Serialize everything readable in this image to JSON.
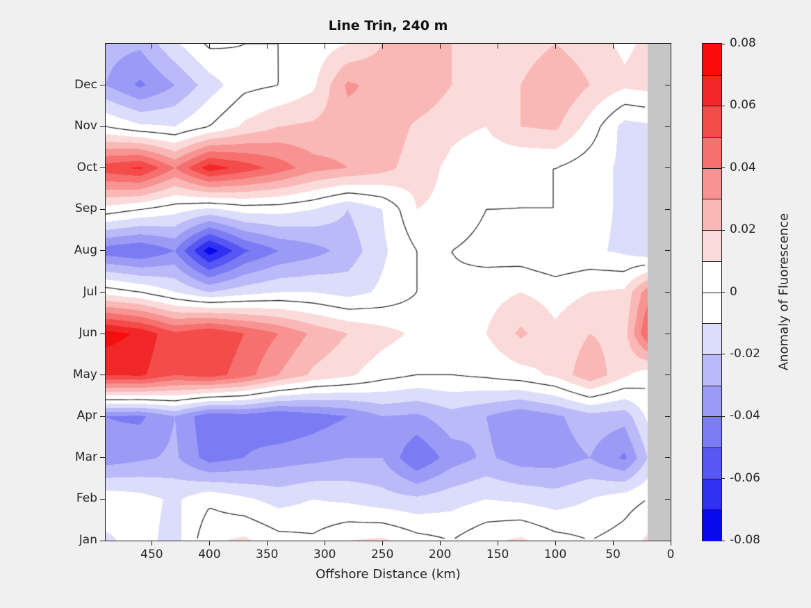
{
  "figure": {
    "title": "Line Trin, 240 m",
    "background_color": "#f0f0f0",
    "axis_color": "#1a1a1a",
    "text_color": "#262626"
  },
  "axes": {
    "xlabel": "Offshore Distance (km)",
    "x_ticks": [
      450,
      400,
      350,
      300,
      250,
      200,
      150,
      100,
      50,
      0
    ],
    "x_range": [
      490,
      0
    ],
    "months": [
      "Jan",
      "Feb",
      "Mar",
      "Apr",
      "May",
      "Jun",
      "Jul",
      "Aug",
      "Sep",
      "Oct",
      "Nov",
      "Dec"
    ]
  },
  "colorbar": {
    "label": "Anomaly of Fluorescence",
    "tick_labels": [
      "0.08",
      "0.06",
      "0.04",
      "0.02",
      "0",
      "-0.02",
      "-0.04",
      "-0.06",
      "-0.08"
    ],
    "tick_values": [
      0.08,
      0.06,
      0.04,
      0.02,
      0,
      -0.02,
      -0.04,
      -0.06,
      -0.08
    ],
    "range": [
      -0.08,
      0.08
    ],
    "colors_low_to_high": [
      "#0a0aef",
      "#3131f2",
      "#5757f3",
      "#7b7bf4",
      "#9b9bf6",
      "#babaf8",
      "#dcdcfb",
      "#ffffff",
      "#ffffff",
      "#fbdbda",
      "#f9b8b6",
      "#f79492",
      "#f5706e",
      "#f34c4a",
      "#f12827",
      "#f90c0c"
    ]
  },
  "chart_data": {
    "type": "heatmap",
    "subtype": "filled-contour",
    "title": "Line Trin, 240 m",
    "xlabel": "Offshore Distance (km)",
    "colorbar_label": "Anomaly of Fluorescence",
    "zlim": [
      -0.08,
      0.08
    ],
    "contour_interval": 0.01,
    "zero_contour_color": "#1a1a1a",
    "x_km": [
      490,
      460,
      430,
      400,
      370,
      340,
      310,
      280,
      250,
      220,
      190,
      160,
      130,
      100,
      70,
      40,
      20
    ],
    "row_labels": [
      "Jan",
      "Feb",
      "Mar",
      "Apr",
      "May",
      "Jun",
      "Jul",
      "Aug",
      "Sep",
      "Oct",
      "Nov",
      "Dec",
      "Jan-wrap-top-edge"
    ],
    "no_data_band_km": [
      20,
      0
    ],
    "no_data_color": "#c6c6c6",
    "grid": [
      [
        -0.012,
        -0.006,
        -0.014,
        0.008,
        0.012,
        0.004,
        0.002,
        0.01,
        0.012,
        0.004,
        0.0,
        0.008,
        0.012,
        0.004,
        0.0,
        0.004,
        0.012
      ],
      [
        -0.003,
        -0.006,
        -0.012,
        -0.002,
        -0.008,
        -0.014,
        -0.01,
        -0.012,
        -0.016,
        -0.018,
        -0.014,
        -0.01,
        -0.012,
        -0.015,
        -0.01,
        -0.004,
        0.0
      ],
      [
        -0.036,
        -0.032,
        -0.028,
        -0.045,
        -0.04,
        -0.035,
        -0.033,
        -0.03,
        -0.03,
        -0.05,
        -0.035,
        -0.028,
        -0.035,
        -0.035,
        -0.03,
        -0.042,
        -0.02
      ],
      [
        -0.04,
        -0.042,
        -0.03,
        -0.048,
        -0.045,
        -0.05,
        -0.045,
        -0.04,
        -0.03,
        -0.032,
        -0.024,
        -0.03,
        -0.038,
        -0.032,
        -0.024,
        -0.026,
        -0.008
      ],
      [
        0.06,
        0.062,
        0.05,
        0.055,
        0.045,
        0.03,
        0.018,
        0.012,
        0.004,
        0.0,
        0.0,
        0.002,
        0.006,
        0.012,
        0.028,
        0.012,
        0.004
      ],
      [
        0.075,
        0.068,
        0.052,
        0.06,
        0.05,
        0.04,
        0.028,
        0.02,
        0.014,
        0.008,
        0.004,
        0.01,
        0.022,
        0.012,
        0.02,
        0.016,
        0.05
      ],
      [
        0.006,
        0.0,
        -0.01,
        -0.02,
        -0.014,
        -0.01,
        -0.01,
        -0.014,
        -0.008,
        0.0,
        0.002,
        0.006,
        0.01,
        0.006,
        0.01,
        0.012,
        0.036
      ],
      [
        -0.046,
        -0.05,
        -0.04,
        -0.076,
        -0.052,
        -0.04,
        -0.034,
        -0.026,
        -0.012,
        0.0,
        0.0,
        -0.004,
        -0.006,
        -0.01,
        -0.008,
        -0.012,
        -0.018
      ],
      [
        0.006,
        0.0,
        -0.006,
        -0.012,
        -0.006,
        -0.006,
        -0.01,
        -0.02,
        -0.01,
        0.01,
        0.008,
        0.0,
        0.0,
        0.0,
        -0.006,
        -0.012,
        -0.02
      ],
      [
        0.056,
        0.062,
        0.04,
        0.066,
        0.056,
        0.046,
        0.034,
        0.03,
        0.024,
        0.014,
        0.008,
        0.004,
        0.0,
        0.0,
        -0.006,
        -0.012,
        -0.015
      ],
      [
        0.0,
        -0.008,
        -0.01,
        0.0,
        0.012,
        0.02,
        0.022,
        0.025,
        0.028,
        0.018,
        0.012,
        0.01,
        0.02,
        0.022,
        0.006,
        -0.014,
        -0.012
      ],
      [
        -0.03,
        -0.042,
        -0.03,
        -0.015,
        -0.003,
        0.0,
        0.008,
        0.032,
        0.026,
        0.03,
        0.02,
        0.014,
        0.02,
        0.03,
        0.02,
        0.012,
        0.014
      ],
      [
        -0.026,
        -0.028,
        -0.012,
        0.002,
        0.0,
        0.0,
        0.004,
        0.01,
        0.02,
        0.028,
        0.02,
        0.012,
        0.014,
        0.02,
        0.014,
        0.008,
        0.012
      ]
    ]
  }
}
